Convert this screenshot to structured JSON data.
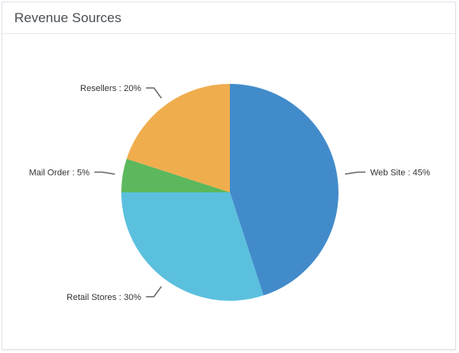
{
  "panel": {
    "title": "Revenue Sources"
  },
  "chart_data": {
    "type": "pie",
    "title": "Revenue Sources",
    "slices": [
      {
        "label": "Web Site",
        "value": 45,
        "color": "#428bca"
      },
      {
        "label": "Retail Stores",
        "value": 30,
        "color": "#5bc0de"
      },
      {
        "label": "Mail Order",
        "value": 5,
        "color": "#5cb85c"
      },
      {
        "label": "Resellers",
        "value": 20,
        "color": "#f0ad4e"
      }
    ],
    "label_format": "{label} : {value}%",
    "legend": "none"
  }
}
